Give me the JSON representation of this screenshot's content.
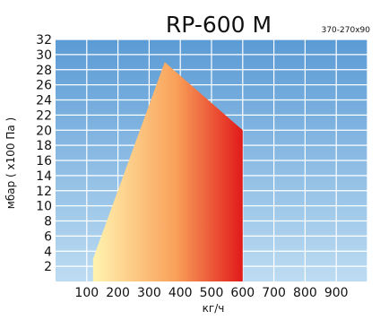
{
  "chart_data": {
    "type": "area",
    "title": "RP-600 M",
    "subtitle": "370-270x90",
    "xlabel": "кг/ч",
    "ylabel": "мбар ( x100 Па )",
    "xlim": [
      0,
      1000
    ],
    "ylim": [
      0,
      32
    ],
    "x_ticks": [
      "100",
      "200",
      "300",
      "400",
      "500",
      "600",
      "700",
      "800",
      "900"
    ],
    "y_ticks": [
      "2",
      "4",
      "6",
      "8",
      "10",
      "12",
      "14",
      "16",
      "18",
      "20",
      "22",
      "24",
      "26",
      "28",
      "30",
      "32"
    ],
    "grid": true,
    "working_range": {
      "points": [
        {
          "x": 120,
          "y": 0
        },
        {
          "x": 120,
          "y": 3
        },
        {
          "x": 350,
          "y": 29
        },
        {
          "x": 600,
          "y": 20
        },
        {
          "x": 600,
          "y": 0
        }
      ]
    },
    "colors": {
      "background_top": "#5B9BD5",
      "background_bottom": "#BDDCF2",
      "grid": "#FFFFFF",
      "fill_left": "#FFF3B0",
      "fill_mid": "#F9A15A",
      "fill_right": "#E11A1A"
    }
  }
}
